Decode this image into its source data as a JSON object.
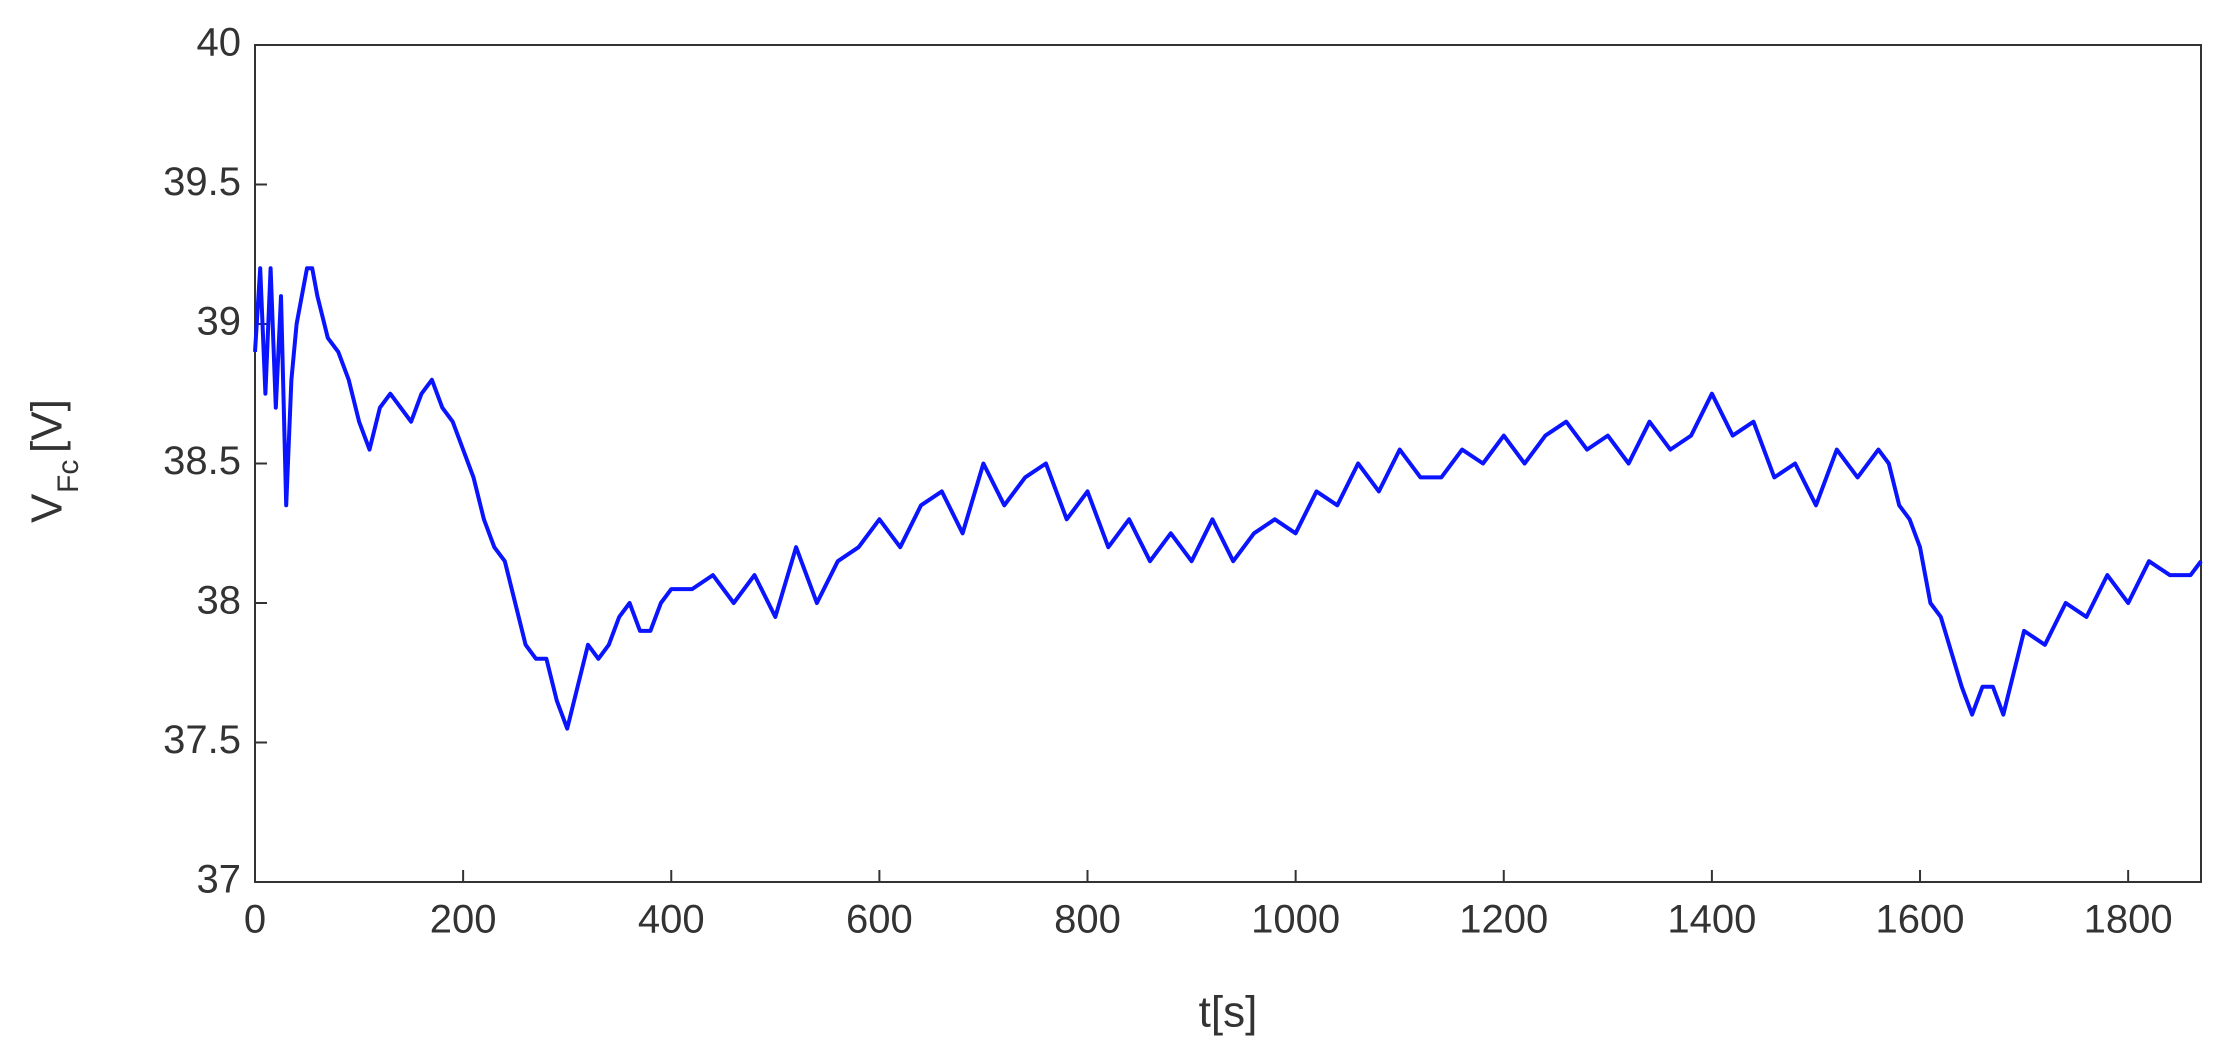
{
  "chart_data": {
    "type": "line",
    "xlabel": "t[s]",
    "ylabel": "V",
    "ylabel_sub": "Fc",
    "ylabel_unit": "[V]",
    "xlim": [
      0,
      1870
    ],
    "ylim": [
      37,
      40
    ],
    "xticks": [
      0,
      200,
      400,
      600,
      800,
      1000,
      1200,
      1400,
      1600,
      1800
    ],
    "yticks": [
      37,
      37.5,
      38,
      38.5,
      39,
      39.5,
      40
    ],
    "grid": false,
    "series": [
      {
        "color": "#0a14ff",
        "x": [
          0,
          5,
          10,
          15,
          20,
          25,
          30,
          35,
          40,
          50,
          55,
          60,
          70,
          80,
          90,
          100,
          110,
          120,
          130,
          140,
          150,
          160,
          170,
          180,
          190,
          200,
          210,
          220,
          230,
          240,
          250,
          260,
          270,
          280,
          290,
          300,
          310,
          320,
          330,
          340,
          350,
          360,
          370,
          380,
          390,
          400,
          420,
          440,
          460,
          480,
          500,
          520,
          540,
          560,
          580,
          600,
          620,
          640,
          660,
          680,
          700,
          720,
          740,
          760,
          780,
          800,
          820,
          840,
          860,
          880,
          900,
          920,
          940,
          960,
          980,
          1000,
          1020,
          1040,
          1060,
          1080,
          1100,
          1120,
          1140,
          1160,
          1180,
          1200,
          1220,
          1240,
          1260,
          1280,
          1300,
          1320,
          1340,
          1360,
          1380,
          1400,
          1420,
          1440,
          1460,
          1480,
          1500,
          1520,
          1540,
          1560,
          1570,
          1580,
          1590,
          1600,
          1610,
          1620,
          1640,
          1650,
          1660,
          1670,
          1680,
          1690,
          1700,
          1720,
          1740,
          1760,
          1780,
          1800,
          1820,
          1840,
          1860,
          1870
        ],
        "values": [
          38.9,
          39.2,
          38.75,
          39.2,
          38.7,
          39.1,
          38.35,
          38.8,
          39.0,
          39.2,
          39.2,
          39.1,
          38.95,
          38.9,
          38.8,
          38.65,
          38.55,
          38.7,
          38.75,
          38.7,
          38.65,
          38.75,
          38.8,
          38.7,
          38.65,
          38.55,
          38.45,
          38.3,
          38.2,
          38.15,
          38.0,
          37.85,
          37.8,
          37.8,
          37.65,
          37.55,
          37.7,
          37.85,
          37.8,
          37.85,
          37.95,
          38.0,
          37.9,
          37.9,
          38.0,
          38.05,
          38.05,
          38.1,
          38.0,
          38.1,
          37.95,
          38.2,
          38.0,
          38.15,
          38.2,
          38.3,
          38.2,
          38.35,
          38.4,
          38.25,
          38.5,
          38.35,
          38.45,
          38.5,
          38.3,
          38.4,
          38.2,
          38.3,
          38.15,
          38.25,
          38.15,
          38.3,
          38.15,
          38.25,
          38.3,
          38.25,
          38.4,
          38.35,
          38.5,
          38.4,
          38.55,
          38.45,
          38.45,
          38.55,
          38.5,
          38.6,
          38.5,
          38.6,
          38.65,
          38.55,
          38.6,
          38.5,
          38.65,
          38.55,
          38.6,
          38.75,
          38.6,
          38.65,
          38.45,
          38.5,
          38.35,
          38.55,
          38.45,
          38.55,
          38.5,
          38.35,
          38.3,
          38.2,
          38.0,
          37.95,
          37.7,
          37.6,
          37.7,
          37.7,
          37.6,
          37.75,
          37.9,
          37.85,
          38.0,
          37.95,
          38.1,
          38.0,
          38.15,
          38.1,
          38.1,
          38.15
        ]
      }
    ]
  }
}
